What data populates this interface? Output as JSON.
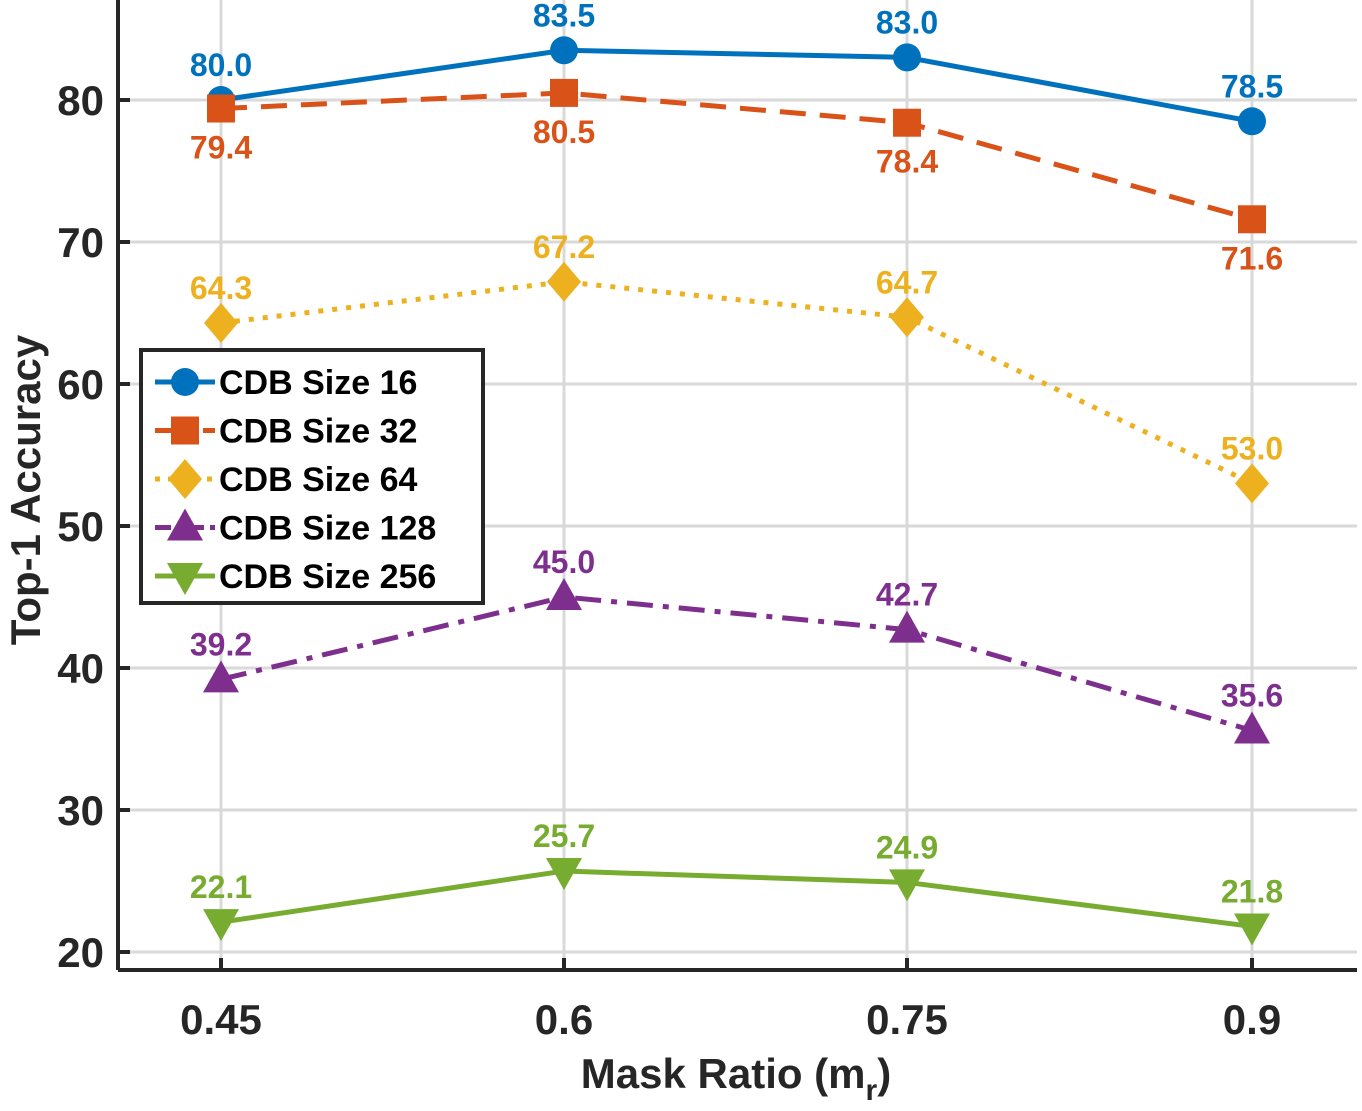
{
  "chart_data": {
    "type": "line",
    "title": "",
    "xlabel": "Mask Ratio (m",
    "xlabel_sub": "r",
    "xlabel_close": ")",
    "ylabel": "Top-1 Accuracy",
    "categories": [
      "0.45",
      "0.6",
      "0.75",
      "0.9"
    ],
    "x": [
      0.45,
      0.6,
      0.75,
      0.9
    ],
    "xlim": [
      0.4,
      0.9
    ],
    "ylim": [
      20,
      85
    ],
    "yticks": [
      20,
      30,
      40,
      50,
      60,
      70,
      80
    ],
    "ytick_labels": [
      "20",
      "30",
      "40",
      "50",
      "60",
      "70",
      "80"
    ],
    "grid": true,
    "legend_position": "left-middle",
    "series": [
      {
        "name": "CDB Size 16",
        "values": [
          80.0,
          83.5,
          83.0,
          78.5
        ],
        "labels": [
          "80.0",
          "83.5",
          "83.0",
          "78.5"
        ],
        "color": "#0072BD",
        "marker": "circle",
        "line_style": "solid",
        "label_pos": [
          "above",
          "above",
          "above",
          "above"
        ]
      },
      {
        "name": "CDB Size 32",
        "values": [
          79.4,
          80.5,
          78.4,
          71.6
        ],
        "labels": [
          "79.4",
          "80.5",
          "78.4",
          "71.6"
        ],
        "color": "#D95319",
        "marker": "square",
        "line_style": "dashed",
        "label_pos": [
          "below",
          "below",
          "below",
          "below"
        ]
      },
      {
        "name": "CDB Size 64",
        "values": [
          64.3,
          67.2,
          64.7,
          53.0
        ],
        "labels": [
          "64.3",
          "67.2",
          "64.7",
          "53.0"
        ],
        "color": "#EDB120",
        "marker": "diamond",
        "line_style": "dotted",
        "label_pos": [
          "above",
          "above",
          "above",
          "above"
        ]
      },
      {
        "name": "CDB Size 128",
        "values": [
          39.2,
          45.0,
          42.7,
          35.6
        ],
        "labels": [
          "39.2",
          "45.0",
          "42.7",
          "35.6"
        ],
        "color": "#7E2F8E",
        "marker": "triangle-up",
        "line_style": "dashdot",
        "label_pos": [
          "above",
          "above",
          "above",
          "above"
        ]
      },
      {
        "name": "CDB Size 256",
        "values": [
          22.1,
          25.7,
          24.9,
          21.8
        ],
        "labels": [
          "22.1",
          "25.7",
          "24.9",
          "21.8"
        ],
        "color": "#77AC30",
        "marker": "triangle-down",
        "line_style": "solid",
        "label_pos": [
          "above",
          "above",
          "above",
          "above"
        ]
      }
    ]
  }
}
